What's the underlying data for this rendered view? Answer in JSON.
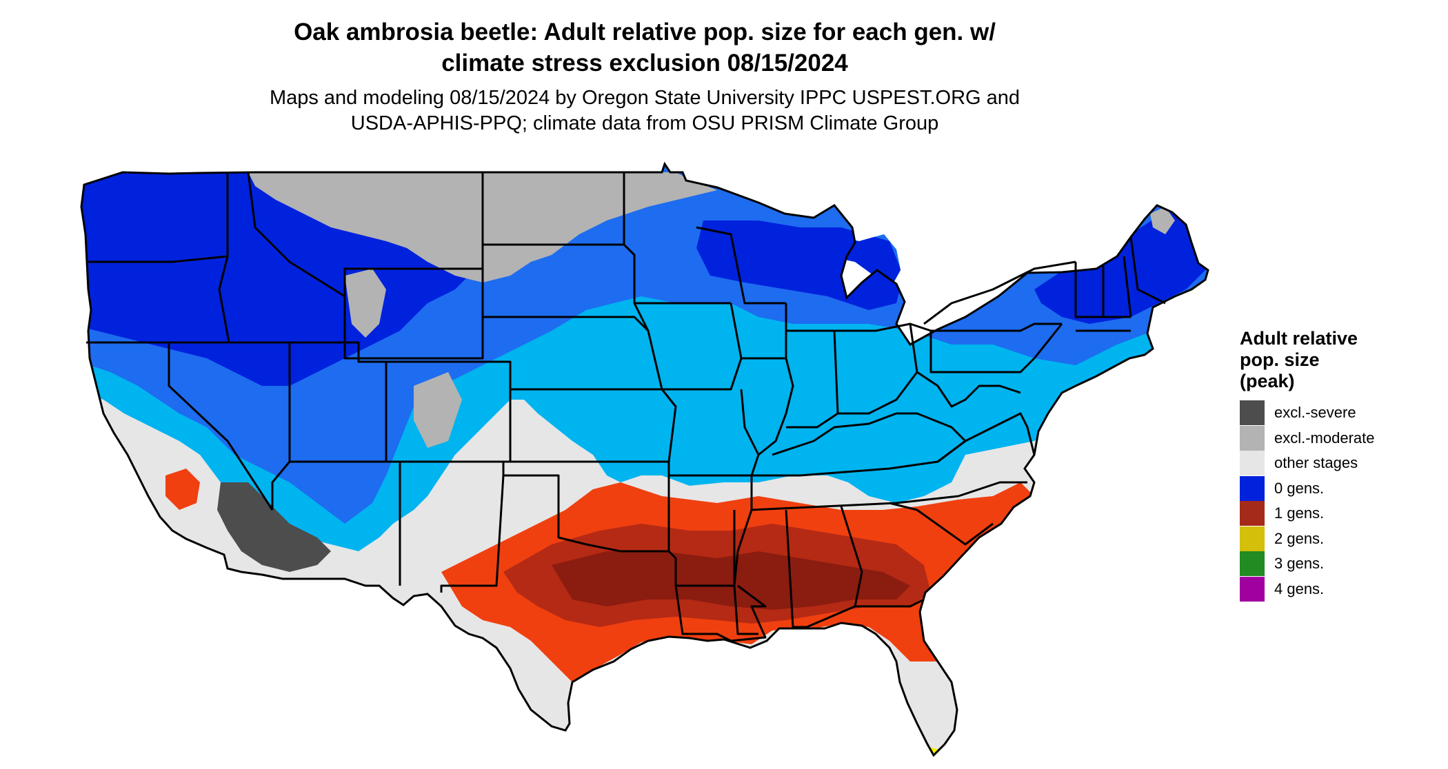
{
  "title": {
    "line1": "Oak ambrosia beetle: Adult relative pop. size for each gen. w/",
    "line2": "climate stress exclusion 08/15/2024"
  },
  "subtitle": {
    "line1": "Maps and modeling 08/15/2024 by Oregon State University IPPC USPEST.ORG and",
    "line2": "USDA-APHIS-PPQ; climate data from OSU PRISM Climate Group"
  },
  "legend": {
    "title": "Adult relative\npop. size\n(peak)",
    "items": [
      {
        "label": "excl.-severe",
        "color": "#4d4d4d"
      },
      {
        "label": "excl.-moderate",
        "color": "#b3b3b3"
      },
      {
        "label": "other stages",
        "color": "#e6e6e6"
      },
      {
        "label": "0 gens.",
        "color": "#0022dd"
      },
      {
        "label": "1 gens.",
        "color": "#a52a1a"
      },
      {
        "label": "2 gens.",
        "color": "#d4c00a"
      },
      {
        "label": "3 gens.",
        "color": "#228b22"
      },
      {
        "label": "4 gens.",
        "color": "#a000a0"
      }
    ]
  },
  "map_colors": {
    "background_land": "#e6e6e6",
    "zero_gens_dark": "#0022dd",
    "zero_gens_mid": "#1e6cf0",
    "zero_gens_light": "#00b4f0",
    "one_gen_dark": "#8b1c10",
    "one_gen_mid": "#b52a14",
    "one_gen_light": "#f04010",
    "excl_moderate": "#b3b3b3",
    "excl_severe": "#4d4d4d",
    "two_gens": "#f0f000",
    "state_border": "#000000"
  }
}
